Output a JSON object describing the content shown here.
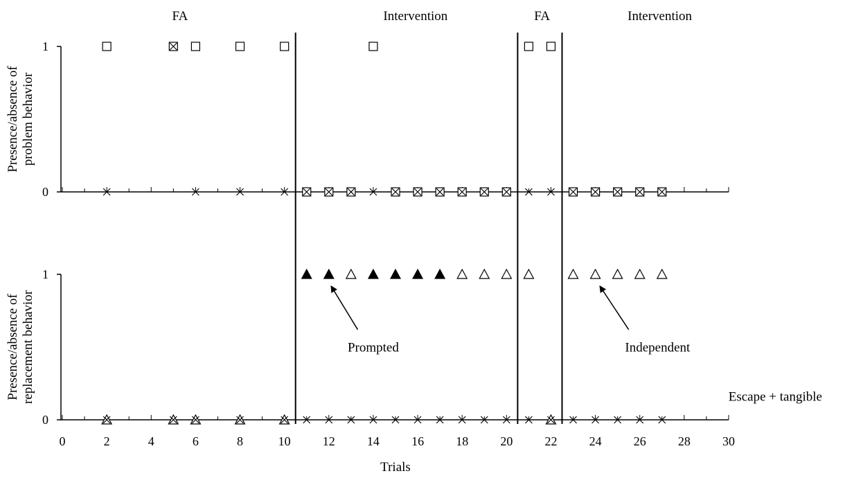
{
  "chart_data": {
    "type": "scatter",
    "xlabel": "Trials",
    "xlim": [
      0,
      30
    ],
    "xticks": [
      0,
      2,
      4,
      6,
      8,
      10,
      12,
      14,
      16,
      18,
      20,
      22,
      24,
      26,
      28,
      30
    ],
    "phase_lines": [
      10.5,
      20.5,
      22.5
    ],
    "phases": [
      {
        "label": "FA",
        "center": 5.3
      },
      {
        "label": "Intervention",
        "center": 15.9
      },
      {
        "label": "FA",
        "center": 21.6
      },
      {
        "label": "Intervention",
        "center": 26.9
      }
    ],
    "annotations": [
      {
        "text": "Prompted",
        "panel": "replacement",
        "text_x": 14.0,
        "text_y": 0.47,
        "arrow_from": [
          13.3,
          0.62
        ],
        "arrow_to": [
          12.1,
          0.92
        ]
      },
      {
        "text": "Independent",
        "panel": "replacement",
        "text_x": 26.8,
        "text_y": 0.47,
        "arrow_from": [
          25.5,
          0.62
        ],
        "arrow_to": [
          24.2,
          0.92
        ]
      },
      {
        "text": "Escape + tangible",
        "panel": "replacement",
        "text_x": 32.1,
        "text_y": 0.13
      }
    ],
    "panels": [
      {
        "id": "problem",
        "ylabel_lines": [
          "Presence/absence of",
          "problem behavior"
        ],
        "ylim": [
          0,
          1
        ],
        "yticks": [
          0,
          1
        ],
        "series": [
          {
            "marker": "square",
            "points": [
              [
                2,
                1
              ],
              [
                5,
                1
              ],
              [
                6,
                1
              ],
              [
                8,
                1
              ],
              [
                10,
                1
              ],
              [
                11,
                0
              ],
              [
                12,
                0
              ],
              [
                13,
                0
              ],
              [
                14,
                1
              ],
              [
                15,
                0
              ],
              [
                16,
                0
              ],
              [
                17,
                0
              ],
              [
                18,
                0
              ],
              [
                19,
                0
              ],
              [
                20,
                0
              ],
              [
                21,
                1
              ],
              [
                22,
                1
              ],
              [
                23,
                0
              ],
              [
                24,
                0
              ],
              [
                25,
                0
              ],
              [
                26,
                0
              ],
              [
                27,
                0
              ]
            ]
          },
          {
            "marker": "x",
            "points": [
              [
                2,
                0
              ],
              [
                5,
                1
              ],
              [
                6,
                0
              ],
              [
                8,
                0
              ],
              [
                10,
                0
              ],
              [
                11,
                0
              ],
              [
                12,
                0
              ],
              [
                13,
                0
              ],
              [
                14,
                0
              ],
              [
                15,
                0
              ],
              [
                16,
                0
              ],
              [
                17,
                0
              ],
              [
                18,
                0
              ],
              [
                19,
                0
              ],
              [
                20,
                0
              ],
              [
                21,
                0
              ],
              [
                22,
                0
              ],
              [
                23,
                0
              ],
              [
                24,
                0
              ],
              [
                25,
                0
              ],
              [
                26,
                0
              ],
              [
                27,
                0
              ]
            ]
          }
        ]
      },
      {
        "id": "replacement",
        "ylabel_lines": [
          "Presence/absence of",
          "replacement behavior"
        ],
        "ylim": [
          0,
          1
        ],
        "yticks": [
          0,
          1
        ],
        "series": [
          {
            "marker": "triangle-filled",
            "points": [
              [
                11,
                1
              ],
              [
                12,
                1
              ],
              [
                14,
                1
              ],
              [
                15,
                1
              ],
              [
                16,
                1
              ],
              [
                17,
                1
              ]
            ]
          },
          {
            "marker": "triangle-open",
            "points": [
              [
                2,
                0
              ],
              [
                5,
                0
              ],
              [
                6,
                0
              ],
              [
                8,
                0
              ],
              [
                10,
                0
              ],
              [
                13,
                1
              ],
              [
                18,
                1
              ],
              [
                19,
                1
              ],
              [
                20,
                1
              ],
              [
                21,
                1
              ],
              [
                22,
                0
              ],
              [
                23,
                1
              ],
              [
                24,
                1
              ],
              [
                25,
                1
              ],
              [
                26,
                1
              ],
              [
                27,
                1
              ]
            ]
          },
          {
            "marker": "x",
            "points": [
              [
                2,
                0
              ],
              [
                5,
                0
              ],
              [
                6,
                0
              ],
              [
                8,
                0
              ],
              [
                10,
                0
              ],
              [
                11,
                0
              ],
              [
                12,
                0
              ],
              [
                13,
                0
              ],
              [
                14,
                0
              ],
              [
                15,
                0
              ],
              [
                16,
                0
              ],
              [
                17,
                0
              ],
              [
                18,
                0
              ],
              [
                19,
                0
              ],
              [
                20,
                0
              ],
              [
                21,
                0
              ],
              [
                22,
                0
              ],
              [
                23,
                0
              ],
              [
                24,
                0
              ],
              [
                25,
                0
              ],
              [
                26,
                0
              ],
              [
                27,
                0
              ]
            ]
          }
        ]
      }
    ]
  }
}
